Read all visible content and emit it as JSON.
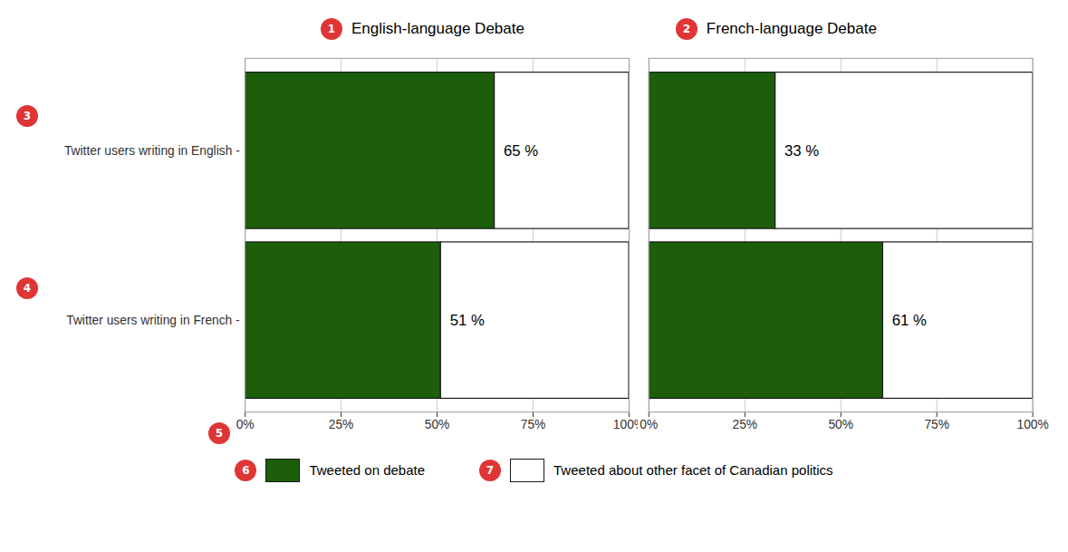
{
  "chart_data": [
    {
      "type": "bar",
      "orientation": "horizontal",
      "stacked": true,
      "title": "English-language Debate",
      "categories": [
        "Twitter users writing in English -",
        "Twitter users writing in French -"
      ],
      "series": [
        {
          "name": "Tweeted on debate",
          "color": "#1c5e0a",
          "values": [
            65,
            51
          ],
          "value_labels": [
            "65 %",
            "51 %"
          ],
          "data_labels": true
        },
        {
          "name": "Tweeted about other facet of Canadian politics",
          "color": "#ffffff",
          "values": [
            35,
            49
          ]
        }
      ],
      "xlim": [
        0,
        100
      ],
      "xticks": [
        {
          "value": 0,
          "label": "0%"
        },
        {
          "value": 25,
          "label": "25%"
        },
        {
          "value": 50,
          "label": "50%"
        },
        {
          "value": 75,
          "label": "75%"
        },
        {
          "value": 100,
          "label": "100%"
        }
      ],
      "grid": true,
      "legend": "bottom",
      "annotations": [
        {
          "text": "1",
          "color": "#e03535"
        },
        {
          "text": "3",
          "color": "#e03535"
        },
        {
          "text": "4",
          "color": "#e03535"
        },
        {
          "text": "5",
          "color": "#e03535"
        },
        {
          "text": "6",
          "color": "#e03535"
        },
        {
          "text": "7",
          "color": "#e03535"
        }
      ]
    },
    {
      "type": "bar",
      "orientation": "horizontal",
      "stacked": true,
      "title": "French-language Debate",
      "categories": [
        "Twitter users writing in English -",
        "Twitter users writing in French -"
      ],
      "series": [
        {
          "name": "Tweeted on debate",
          "color": "#1c5e0a",
          "values": [
            33,
            61
          ],
          "value_labels": [
            "33 %",
            "61 %"
          ],
          "data_labels": true
        },
        {
          "name": "Tweeted about other facet of Canadian politics",
          "color": "#ffffff",
          "values": [
            67,
            39
          ]
        }
      ],
      "xlim": [
        0,
        100
      ],
      "xticks": [
        {
          "value": 0,
          "label": "0%"
        },
        {
          "value": 25,
          "label": "25%"
        },
        {
          "value": 50,
          "label": "50%"
        },
        {
          "value": 75,
          "label": "75%"
        },
        {
          "value": 100,
          "label": "100%"
        }
      ],
      "grid": true,
      "tick_labels": "x",
      "annotations": [
        {
          "text": "2",
          "color": "#e03535"
        }
      ]
    }
  ]
}
